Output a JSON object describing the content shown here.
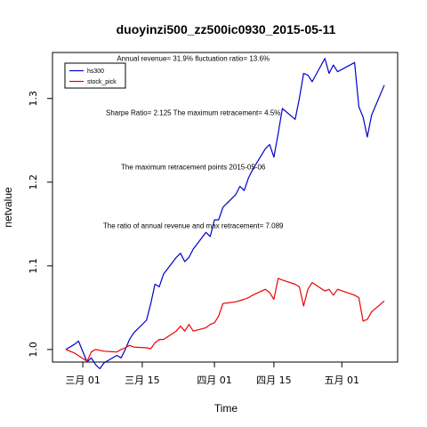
{
  "chart_data": {
    "type": "line",
    "title": "duoyinzi500_zz500ic0930_2015-05-11",
    "xlabel": "Time",
    "ylabel": "netvalue",
    "x_ticks": [
      {
        "date": "2015-03-01",
        "label": "三月 01"
      },
      {
        "date": "2015-03-15",
        "label": "三月 15"
      },
      {
        "date": "2015-04-01",
        "label": "四月 01"
      },
      {
        "date": "2015-04-15",
        "label": "四月 15"
      },
      {
        "date": "2015-05-01",
        "label": "五月 01"
      }
    ],
    "y_ticks": [
      1.0,
      1.1,
      1.2,
      1.3
    ],
    "xlim": [
      "2015-02-25",
      "2015-05-11"
    ],
    "ylim": [
      0.985,
      1.355
    ],
    "legend_position": "top-left",
    "annotations": [
      {
        "text": "Annual revenue=  31.9% fluctuation ratio= 13.6%",
        "x": "2015-03-27",
        "y": 1.345
      },
      {
        "text": "Sharpe Ratio= 2.125 The maximum retracement= 4.5%",
        "x": "2015-03-27",
        "y": 1.28
      },
      {
        "text": "The maximum retracement points 2015-05-06",
        "x": "2015-03-27",
        "y": 1.215
      },
      {
        "text": "The ratio of annual revenue and max retracement= 7.089",
        "x": "2015-03-27",
        "y": 1.145
      }
    ],
    "series": [
      {
        "name": "hs300",
        "color": "#0000cc",
        "points": [
          [
            "2015-02-25",
            1.0
          ],
          [
            "2015-02-27",
            1.006
          ],
          [
            "2015-02-28",
            1.01
          ],
          [
            "2015-03-02",
            0.985
          ],
          [
            "2015-03-03",
            0.99
          ],
          [
            "2015-03-04",
            0.982
          ],
          [
            "2015-03-05",
            0.977
          ],
          [
            "2015-03-06",
            0.984
          ],
          [
            "2015-03-09",
            0.993
          ],
          [
            "2015-03-10",
            0.99
          ],
          [
            "2015-03-11",
            1.0
          ],
          [
            "2015-03-12",
            1.012
          ],
          [
            "2015-03-13",
            1.02
          ],
          [
            "2015-03-16",
            1.035
          ],
          [
            "2015-03-17",
            1.055
          ],
          [
            "2015-03-18",
            1.078
          ],
          [
            "2015-03-19",
            1.075
          ],
          [
            "2015-03-20",
            1.09
          ],
          [
            "2015-03-23",
            1.11
          ],
          [
            "2015-03-24",
            1.115
          ],
          [
            "2015-03-25",
            1.105
          ],
          [
            "2015-03-26",
            1.11
          ],
          [
            "2015-03-27",
            1.12
          ],
          [
            "2015-03-30",
            1.14
          ],
          [
            "2015-03-31",
            1.135
          ],
          [
            "2015-04-01",
            1.155
          ],
          [
            "2015-04-02",
            1.155
          ],
          [
            "2015-04-03",
            1.17
          ],
          [
            "2015-04-06",
            1.185
          ],
          [
            "2015-04-07",
            1.195
          ],
          [
            "2015-04-08",
            1.19
          ],
          [
            "2015-04-09",
            1.205
          ],
          [
            "2015-04-10",
            1.215
          ],
          [
            "2015-04-13",
            1.24
          ],
          [
            "2015-04-14",
            1.245
          ],
          [
            "2015-04-15",
            1.23
          ],
          [
            "2015-04-16",
            1.258
          ],
          [
            "2015-04-17",
            1.288
          ],
          [
            "2015-04-20",
            1.275
          ],
          [
            "2015-04-21",
            1.3
          ],
          [
            "2015-04-22",
            1.33
          ],
          [
            "2015-04-23",
            1.328
          ],
          [
            "2015-04-24",
            1.32
          ],
          [
            "2015-04-27",
            1.348
          ],
          [
            "2015-04-28",
            1.33
          ],
          [
            "2015-04-29",
            1.34
          ],
          [
            "2015-04-30",
            1.332
          ],
          [
            "2015-05-04",
            1.343
          ],
          [
            "2015-05-05",
            1.29
          ],
          [
            "2015-05-06",
            1.278
          ],
          [
            "2015-05-07",
            1.254
          ],
          [
            "2015-05-08",
            1.28
          ],
          [
            "2015-05-11",
            1.316
          ]
        ]
      },
      {
        "name": "stock_pick",
        "color": "#ee0000",
        "points": [
          [
            "2015-02-25",
            1.0
          ],
          [
            "2015-02-27",
            0.996
          ],
          [
            "2015-03-02",
            0.986
          ],
          [
            "2015-03-03",
            0.997
          ],
          [
            "2015-03-04",
            1.0
          ],
          [
            "2015-03-05",
            0.999
          ],
          [
            "2015-03-06",
            0.998
          ],
          [
            "2015-03-09",
            0.997
          ],
          [
            "2015-03-10",
            1.0
          ],
          [
            "2015-03-11",
            1.002
          ],
          [
            "2015-03-12",
            1.005
          ],
          [
            "2015-03-13",
            1.003
          ],
          [
            "2015-03-16",
            1.002
          ],
          [
            "2015-03-17",
            1.001
          ],
          [
            "2015-03-18",
            1.008
          ],
          [
            "2015-03-19",
            1.012
          ],
          [
            "2015-03-20",
            1.012
          ],
          [
            "2015-03-23",
            1.022
          ],
          [
            "2015-03-24",
            1.028
          ],
          [
            "2015-03-25",
            1.022
          ],
          [
            "2015-03-26",
            1.03
          ],
          [
            "2015-03-27",
            1.022
          ],
          [
            "2015-03-30",
            1.026
          ],
          [
            "2015-03-31",
            1.03
          ],
          [
            "2015-04-01",
            1.032
          ],
          [
            "2015-04-02",
            1.04
          ],
          [
            "2015-04-03",
            1.055
          ],
          [
            "2015-04-06",
            1.057
          ],
          [
            "2015-04-08",
            1.06
          ],
          [
            "2015-04-09",
            1.062
          ],
          [
            "2015-04-10",
            1.065
          ],
          [
            "2015-04-13",
            1.072
          ],
          [
            "2015-04-14",
            1.068
          ],
          [
            "2015-04-15",
            1.06
          ],
          [
            "2015-04-16",
            1.085
          ],
          [
            "2015-04-17",
            1.083
          ],
          [
            "2015-04-20",
            1.078
          ],
          [
            "2015-04-21",
            1.075
          ],
          [
            "2015-04-22",
            1.052
          ],
          [
            "2015-04-23",
            1.072
          ],
          [
            "2015-04-24",
            1.08
          ],
          [
            "2015-04-27",
            1.07
          ],
          [
            "2015-04-28",
            1.072
          ],
          [
            "2015-04-29",
            1.065
          ],
          [
            "2015-04-30",
            1.072
          ],
          [
            "2015-05-04",
            1.065
          ],
          [
            "2015-05-05",
            1.062
          ],
          [
            "2015-05-06",
            1.034
          ],
          [
            "2015-05-07",
            1.036
          ],
          [
            "2015-05-08",
            1.045
          ],
          [
            "2015-05-11",
            1.058
          ]
        ]
      }
    ]
  }
}
